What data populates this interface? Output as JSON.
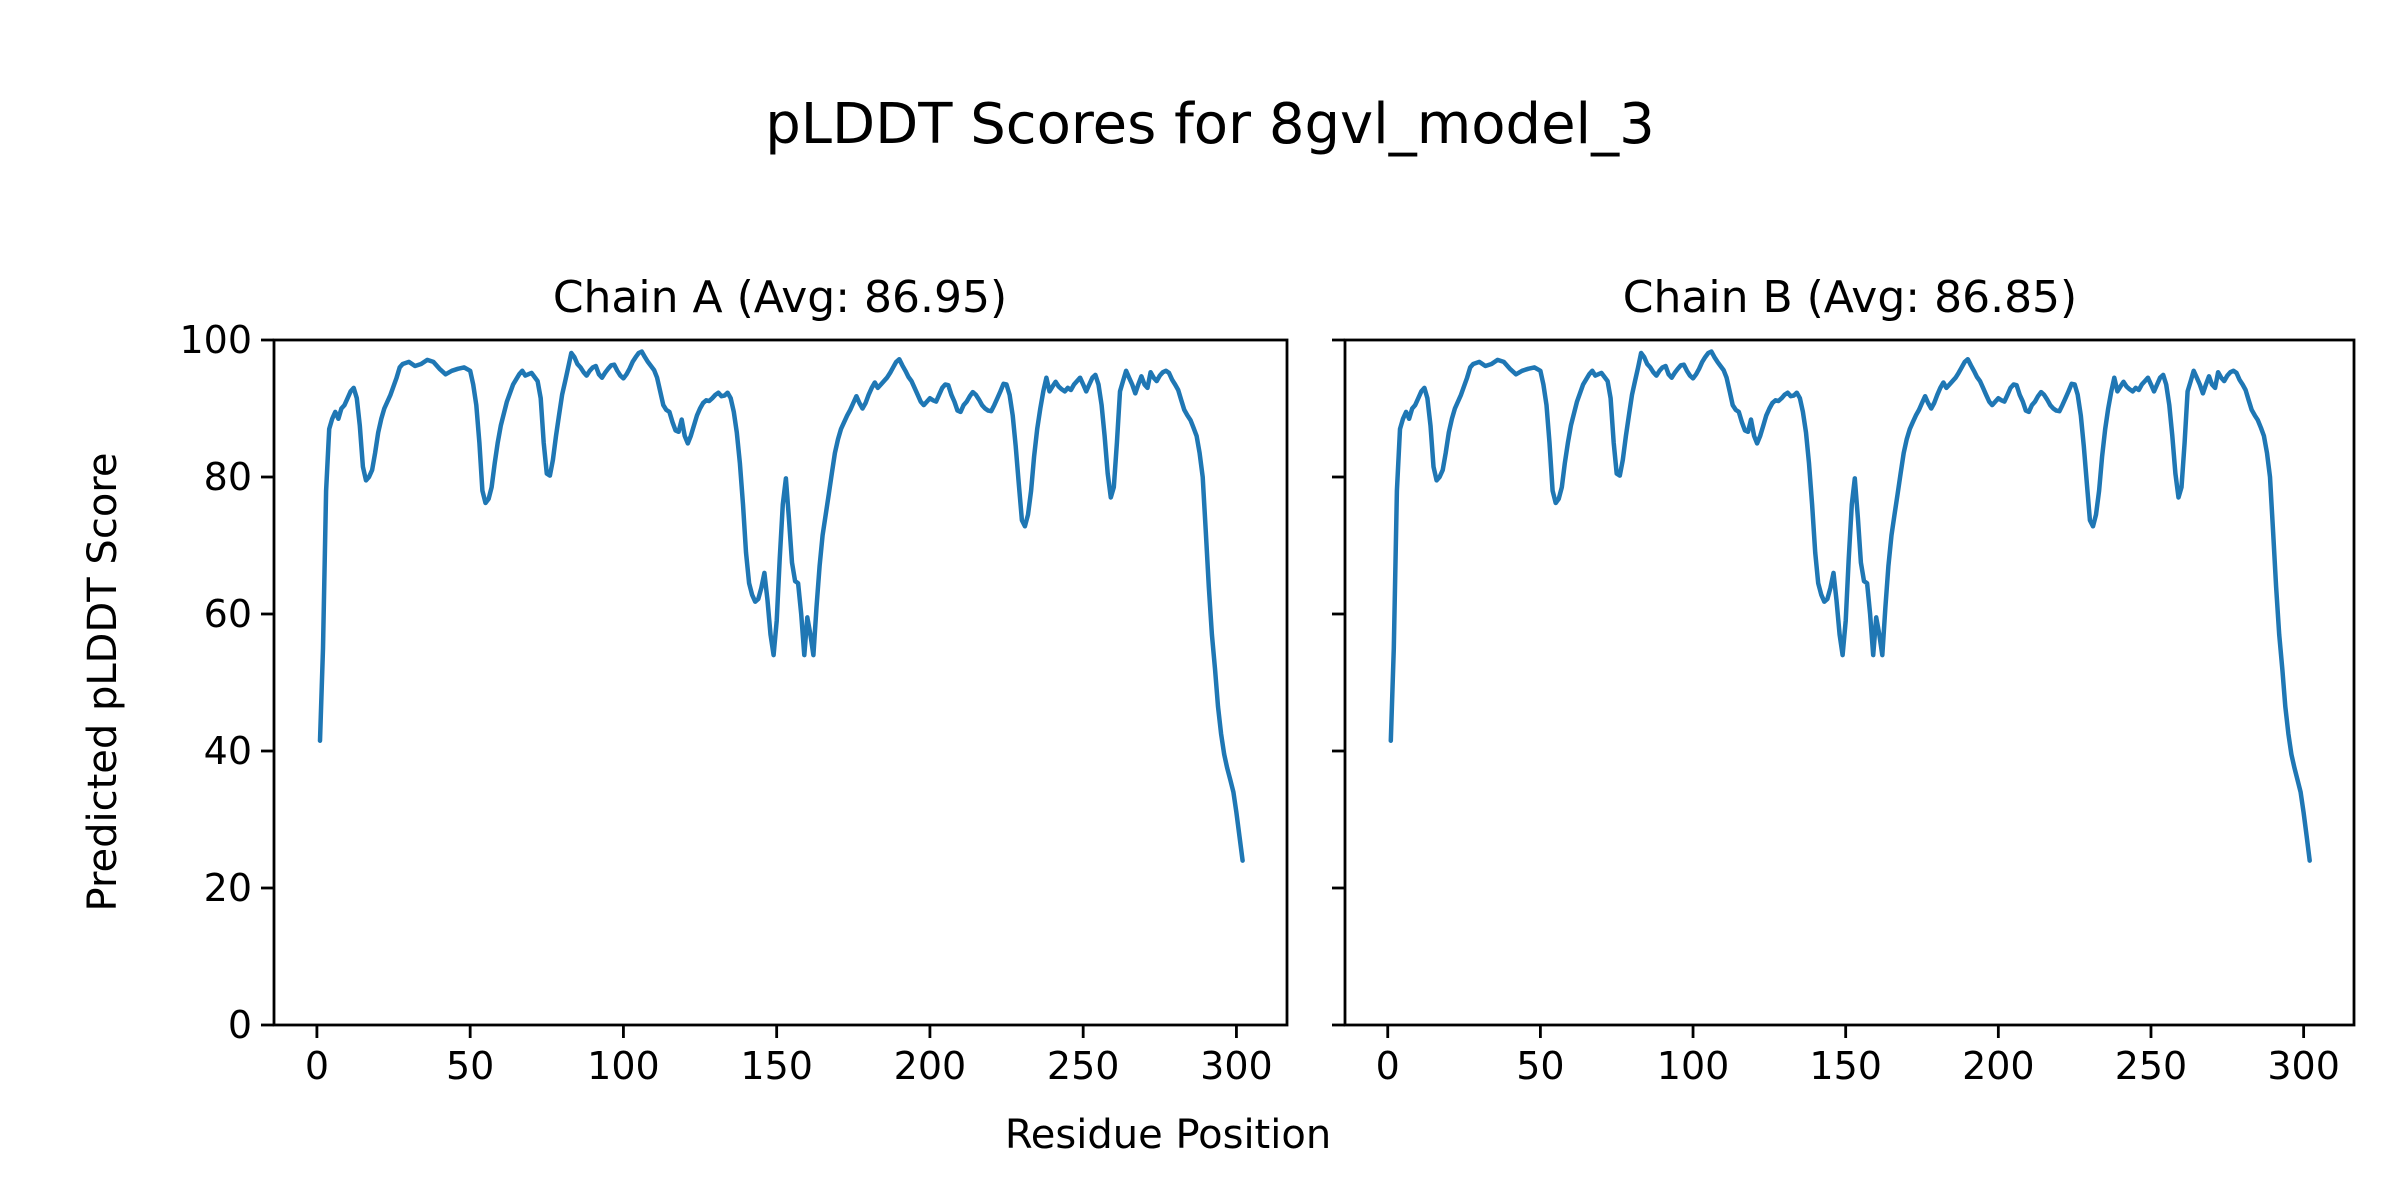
{
  "figure": {
    "suptitle": "pLDDT Scores for 8gvl_model_3"
  },
  "chart_data": {
    "type": "line",
    "suptitle": "pLDDT Scores for 8gvl_model_3",
    "xlabel": "Residue Position",
    "ylabel": "Predicted pLDDT Score",
    "xticks": [
      0,
      50,
      100,
      150,
      200,
      250,
      300
    ],
    "yticks": [
      0,
      20,
      40,
      60,
      80,
      100
    ],
    "xlim": [
      -14,
      316.5
    ],
    "ylim": [
      0,
      100
    ],
    "grid": false,
    "legend": false,
    "line_color": "#1f77b4",
    "axis_color": "#000000",
    "panels": [
      {
        "title": "Chain A (Avg: 86.95)",
        "series_name": "Chain A",
        "avg": 86.95
      },
      {
        "title": "Chain B (Avg: 86.85)",
        "series_name": "Chain B",
        "avg": 86.85
      }
    ],
    "curves_visually_identical": true,
    "points": [
      [
        1,
        41.5
      ],
      [
        2,
        55
      ],
      [
        3,
        78
      ],
      [
        4,
        87
      ],
      [
        5,
        88.5
      ],
      [
        6,
        89.5
      ],
      [
        7,
        88.5
      ],
      [
        8,
        90
      ],
      [
        9,
        90.5
      ],
      [
        10,
        91.5
      ],
      [
        11,
        92.5
      ],
      [
        12,
        93
      ],
      [
        13,
        91.5
      ],
      [
        14,
        87.5
      ],
      [
        15,
        81.5
      ],
      [
        16,
        79.5
      ],
      [
        17,
        80
      ],
      [
        18,
        81
      ],
      [
        19,
        83.5
      ],
      [
        20,
        86.5
      ],
      [
        21,
        88.5
      ],
      [
        22,
        90
      ],
      [
        24,
        92
      ],
      [
        26,
        94.5
      ],
      [
        27,
        96
      ],
      [
        28,
        96.5
      ],
      [
        30,
        96.8
      ],
      [
        32,
        96.2
      ],
      [
        34,
        96.5
      ],
      [
        36,
        97.1
      ],
      [
        38,
        96.8
      ],
      [
        40,
        95.8
      ],
      [
        42,
        95
      ],
      [
        44,
        95.5
      ],
      [
        46,
        95.8
      ],
      [
        48,
        96
      ],
      [
        50,
        95.5
      ],
      [
        51,
        93.5
      ],
      [
        52,
        90.5
      ],
      [
        53,
        85
      ],
      [
        54,
        78
      ],
      [
        55,
        76.2
      ],
      [
        56,
        76.8
      ],
      [
        57,
        78.5
      ],
      [
        58,
        82
      ],
      [
        59,
        85
      ],
      [
        60,
        87.5
      ],
      [
        62,
        91
      ],
      [
        64,
        93.5
      ],
      [
        66,
        95
      ],
      [
        67,
        95.5
      ],
      [
        68,
        94.8
      ],
      [
        70,
        95.2
      ],
      [
        72,
        94
      ],
      [
        73,
        91.5
      ],
      [
        74,
        85
      ],
      [
        75,
        80.5
      ],
      [
        76,
        80.2
      ],
      [
        77,
        82.5
      ],
      [
        78,
        86
      ],
      [
        79,
        89
      ],
      [
        80,
        92
      ],
      [
        81,
        94
      ],
      [
        82,
        96
      ],
      [
        83,
        98.1
      ],
      [
        84,
        97.5
      ],
      [
        85,
        96.5
      ],
      [
        86,
        96
      ],
      [
        87,
        95.3
      ],
      [
        88,
        94.8
      ],
      [
        89,
        95.5
      ],
      [
        90,
        96
      ],
      [
        91,
        96.2
      ],
      [
        92,
        95
      ],
      [
        93,
        94.5
      ],
      [
        94,
        95.2
      ],
      [
        95,
        95.8
      ],
      [
        96,
        96.3
      ],
      [
        97,
        96.4
      ],
      [
        98,
        95.5
      ],
      [
        99,
        94.8
      ],
      [
        100,
        94.4
      ],
      [
        101,
        95
      ],
      [
        102,
        95.8
      ],
      [
        103,
        96.8
      ],
      [
        104,
        97.5
      ],
      [
        105,
        98.1
      ],
      [
        106,
        98.3
      ],
      [
        107,
        97.5
      ],
      [
        108,
        96.8
      ],
      [
        109,
        96.2
      ],
      [
        110,
        95.6
      ],
      [
        111,
        94.5
      ],
      [
        112,
        92.5
      ],
      [
        113,
        90.5
      ],
      [
        114,
        89.8
      ],
      [
        115,
        89.5
      ],
      [
        116,
        88
      ],
      [
        117,
        86.8
      ],
      [
        118,
        86.6
      ],
      [
        119,
        88.4
      ],
      [
        120,
        86
      ],
      [
        121,
        84.9
      ],
      [
        122,
        86
      ],
      [
        123,
        87.5
      ],
      [
        124,
        89
      ],
      [
        125,
        90
      ],
      [
        126,
        90.8
      ],
      [
        127,
        91.2
      ],
      [
        128,
        91.1
      ],
      [
        129,
        91.5
      ],
      [
        130,
        92
      ],
      [
        131,
        92.3
      ],
      [
        132,
        91.8
      ],
      [
        133,
        91.9
      ],
      [
        134,
        92.3
      ],
      [
        135,
        91.5
      ],
      [
        136,
        89.5
      ],
      [
        137,
        86.5
      ],
      [
        138,
        82
      ],
      [
        139,
        76
      ],
      [
        140,
        69
      ],
      [
        141,
        64.5
      ],
      [
        142,
        62.8
      ],
      [
        143,
        61.8
      ],
      [
        144,
        62.2
      ],
      [
        145,
        63.8
      ],
      [
        146,
        66
      ],
      [
        147,
        62
      ],
      [
        148,
        57
      ],
      [
        149,
        54
      ],
      [
        150,
        59
      ],
      [
        151,
        68
      ],
      [
        152,
        76
      ],
      [
        153,
        79.8
      ],
      [
        154,
        74
      ],
      [
        155,
        67.5
      ],
      [
        156,
        64.8
      ],
      [
        157,
        64.5
      ],
      [
        158,
        60
      ],
      [
        159,
        54
      ],
      [
        160,
        59.5
      ],
      [
        161,
        57
      ],
      [
        162,
        54
      ],
      [
        163,
        61
      ],
      [
        164,
        67
      ],
      [
        165,
        71.5
      ],
      [
        166,
        74.5
      ],
      [
        167,
        77.5
      ],
      [
        168,
        80.5
      ],
      [
        169,
        83.5
      ],
      [
        170,
        85.5
      ],
      [
        171,
        87
      ],
      [
        172,
        88
      ],
      [
        173,
        89
      ],
      [
        174,
        89.8
      ],
      [
        175,
        90.8
      ],
      [
        176,
        91.8
      ],
      [
        177,
        90.8
      ],
      [
        178,
        90
      ],
      [
        179,
        90.8
      ],
      [
        180,
        92
      ],
      [
        181,
        93
      ],
      [
        182,
        93.8
      ],
      [
        183,
        93
      ],
      [
        184,
        93.5
      ],
      [
        185,
        94
      ],
      [
        186,
        94.5
      ],
      [
        187,
        95.2
      ],
      [
        188,
        96
      ],
      [
        189,
        96.8
      ],
      [
        190,
        97.2
      ],
      [
        191,
        96.3
      ],
      [
        192,
        95.5
      ],
      [
        193,
        94.6
      ],
      [
        194,
        94
      ],
      [
        195,
        93
      ],
      [
        196,
        92
      ],
      [
        197,
        91
      ],
      [
        198,
        90.5
      ],
      [
        199,
        91
      ],
      [
        200,
        91.5
      ],
      [
        201,
        91.2
      ],
      [
        202,
        91
      ],
      [
        203,
        92
      ],
      [
        204,
        93
      ],
      [
        205,
        93.5
      ],
      [
        206,
        93.4
      ],
      [
        207,
        92
      ],
      [
        208,
        91
      ],
      [
        209,
        89.7
      ],
      [
        210,
        89.5
      ],
      [
        211,
        90.5
      ],
      [
        212,
        91
      ],
      [
        213,
        91.8
      ],
      [
        214,
        92.4
      ],
      [
        215,
        92
      ],
      [
        216,
        91.3
      ],
      [
        217,
        90.5
      ],
      [
        218,
        90
      ],
      [
        219,
        89.7
      ],
      [
        220,
        89.6
      ],
      [
        221,
        90.5
      ],
      [
        222,
        91.5
      ],
      [
        223,
        92.5
      ],
      [
        224,
        93.6
      ],
      [
        225,
        93.5
      ],
      [
        226,
        92
      ],
      [
        227,
        89
      ],
      [
        228,
        84.5
      ],
      [
        229,
        79
      ],
      [
        230,
        73.7
      ],
      [
        231,
        72.8
      ],
      [
        232,
        74.5
      ],
      [
        233,
        78
      ],
      [
        234,
        83
      ],
      [
        235,
        87
      ],
      [
        236,
        90
      ],
      [
        237,
        92.5
      ],
      [
        238,
        94.5
      ],
      [
        239,
        92.5
      ],
      [
        240,
        93.2
      ],
      [
        241,
        93.9
      ],
      [
        242,
        93.2
      ],
      [
        243,
        92.8
      ],
      [
        244,
        92.5
      ],
      [
        245,
        93
      ],
      [
        246,
        92.7
      ],
      [
        247,
        93.5
      ],
      [
        248,
        94
      ],
      [
        249,
        94.5
      ],
      [
        250,
        93.5
      ],
      [
        251,
        92.5
      ],
      [
        252,
        93.5
      ],
      [
        253,
        94.5
      ],
      [
        254,
        94.9
      ],
      [
        255,
        93.5
      ],
      [
        256,
        90.5
      ],
      [
        257,
        86
      ],
      [
        258,
        80.5
      ],
      [
        259,
        77
      ],
      [
        260,
        78.5
      ],
      [
        261,
        85
      ],
      [
        262,
        92.5
      ],
      [
        263,
        94
      ],
      [
        264,
        95.5
      ],
      [
        265,
        94.5
      ],
      [
        266,
        93.5
      ],
      [
        267,
        92.2
      ],
      [
        268,
        93.5
      ],
      [
        269,
        94.7
      ],
      [
        270,
        93.5
      ],
      [
        271,
        93
      ],
      [
        272,
        95.3
      ],
      [
        273,
        94.5
      ],
      [
        274,
        94
      ],
      [
        275,
        94.8
      ],
      [
        276,
        95.3
      ],
      [
        277,
        95.5
      ],
      [
        278,
        95.2
      ],
      [
        279,
        94.2
      ],
      [
        280,
        93.5
      ],
      [
        281,
        92.7
      ],
      [
        282,
        91.2
      ],
      [
        283,
        89.8
      ],
      [
        284,
        89
      ],
      [
        285,
        88.3
      ],
      [
        286,
        87.2
      ],
      [
        287,
        86
      ],
      [
        288,
        83.5
      ],
      [
        289,
        80
      ],
      [
        290,
        72
      ],
      [
        291,
        64
      ],
      [
        292,
        57
      ],
      [
        293,
        52
      ],
      [
        294,
        46.5
      ],
      [
        295,
        42.5
      ],
      [
        296,
        39.5
      ],
      [
        297,
        37.5
      ],
      [
        298,
        35.8
      ],
      [
        299,
        34
      ],
      [
        300,
        31
      ],
      [
        301,
        27.5
      ],
      [
        302,
        24
      ]
    ]
  }
}
